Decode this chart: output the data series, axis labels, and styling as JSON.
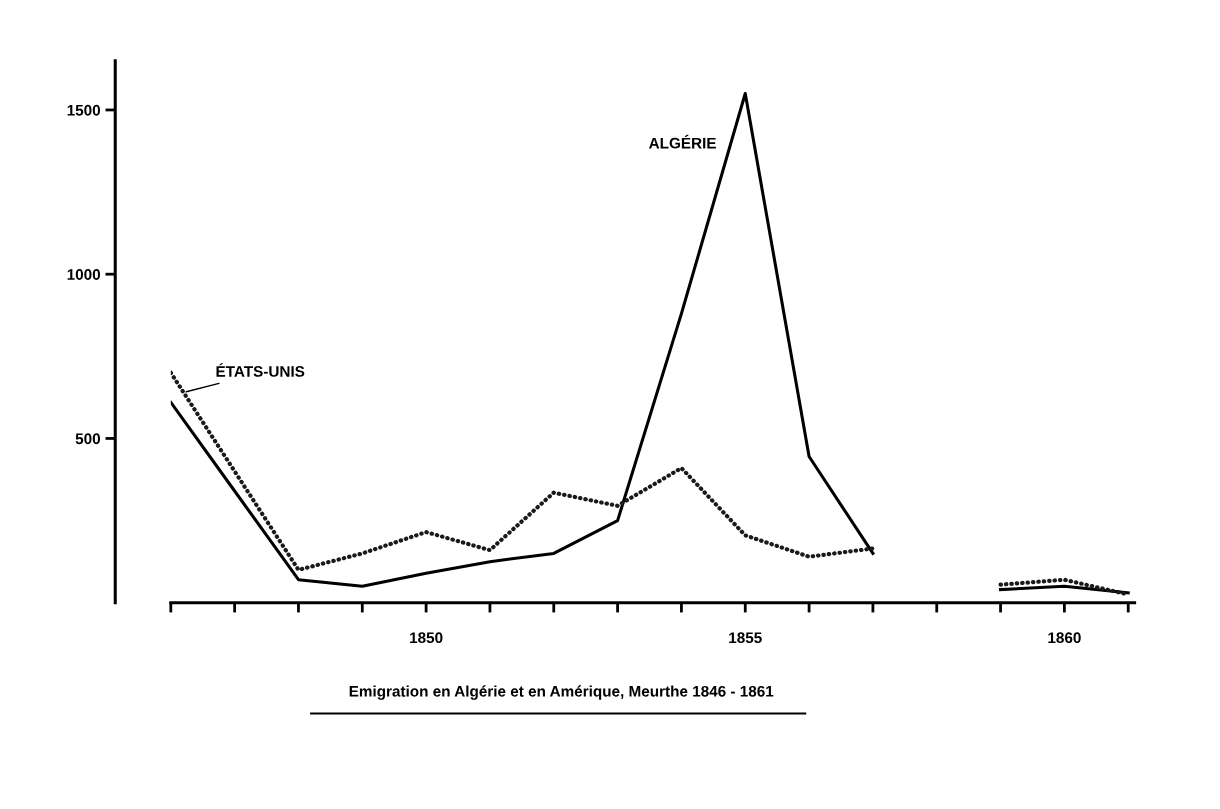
{
  "chart_data": {
    "type": "line",
    "xlim": [
      1846,
      1861.1
    ],
    "ylim": [
      0,
      1650
    ],
    "xticks": [
      {
        "value": 1846,
        "label": null
      },
      {
        "value": 1847,
        "label": null
      },
      {
        "value": 1848,
        "label": null
      },
      {
        "value": 1849,
        "label": null
      },
      1850,
      {
        "value": 1851,
        "label": null
      },
      {
        "value": 1852,
        "label": null
      },
      {
        "value": 1853,
        "label": null
      },
      {
        "value": 1854,
        "label": null
      },
      1855,
      {
        "value": 1856,
        "label": null
      },
      {
        "value": 1857,
        "label": null
      },
      {
        "value": 1858,
        "label": null
      },
      {
        "value": 1859,
        "label": null
      },
      1860,
      {
        "value": 1861,
        "label": null
      }
    ],
    "yticks": [
      500,
      1000,
      1500
    ],
    "grid": false,
    "legend": false,
    "marker": "none",
    "series": [
      {
        "name": "ALGÉRIE",
        "color": "#000000",
        "line_style": "solid",
        "x": [
          1846,
          1847,
          1848,
          1849,
          1850,
          1851,
          1852,
          1853,
          1854,
          1855,
          1856,
          1857,
          1858,
          1859,
          1860,
          1861
        ],
        "values": [
          610,
          340,
          70,
          50,
          90,
          125,
          150,
          250,
          880,
          1550,
          445,
          150,
          null,
          40,
          50,
          30
        ]
      },
      {
        "name": "ÉTATS-UNIS",
        "color": "#1a1a1a",
        "line_style": "dotted",
        "x": [
          1846,
          1848,
          1849,
          1850,
          1851,
          1852,
          1853,
          1854,
          1855,
          1856,
          1857,
          1858,
          1859,
          1860,
          1861
        ],
        "values": [
          700,
          100,
          150,
          215,
          160,
          335,
          295,
          410,
          205,
          140,
          165,
          null,
          55,
          70,
          25
        ]
      }
    ],
    "annotations": [
      "Emigration en Algérie et en Amérique, Meurthe 1846 - 1861"
    ]
  }
}
